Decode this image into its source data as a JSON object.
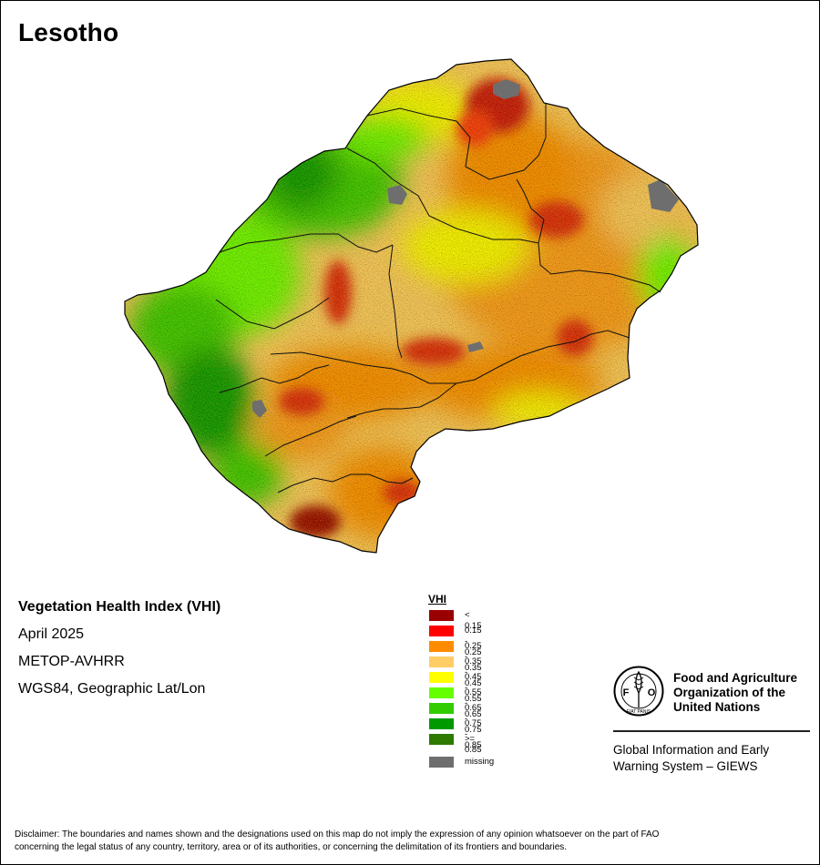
{
  "map": {
    "country": "Lesotho",
    "product": "Vegetation Health Index (VHI)",
    "period": "April 2025",
    "sensor": "METOP-AVHRR",
    "projection": "WGS84, Geographic Lat/Lon"
  },
  "legend": {
    "title": "VHI",
    "classes": [
      {
        "label": "< 0.15",
        "color": "#990000"
      },
      {
        "label": "0.15 - 0.25",
        "color": "#ff0000"
      },
      {
        "label": "0.25 - 0.35",
        "color": "#ff8c00"
      },
      {
        "label": "0.35 - 0.45",
        "color": "#ffcc66"
      },
      {
        "label": "0.45 - 0.55",
        "color": "#ffff00"
      },
      {
        "label": "0.55 - 0.65",
        "color": "#66ff00"
      },
      {
        "label": "0.65 - 0.75",
        "color": "#33cc00"
      },
      {
        "label": "0.75 - 0.85",
        "color": "#009900"
      },
      {
        "label": ">= 0.85",
        "color": "#2e7a00"
      }
    ],
    "missing": {
      "label": "missing",
      "color": "#6e6e6e"
    }
  },
  "org": {
    "line1": "Food and Agriculture",
    "line2": "Organization of the",
    "line3": "United Nations",
    "logo_text": "FAO",
    "logo_motto": "FIAT PANIS",
    "giews1": "Global Information and Early",
    "giews2": "Warning System – GIEWS"
  },
  "disclaimer": {
    "line1": "Disclaimer: The boundaries and names shown and the designations used on this map do not imply the expression of any opinion whatsoever on the part of FAO",
    "line2": "concerning the legal status of any country, territory, area or of its authorities, or concerning the delimitation of its frontiers and boundaries."
  }
}
